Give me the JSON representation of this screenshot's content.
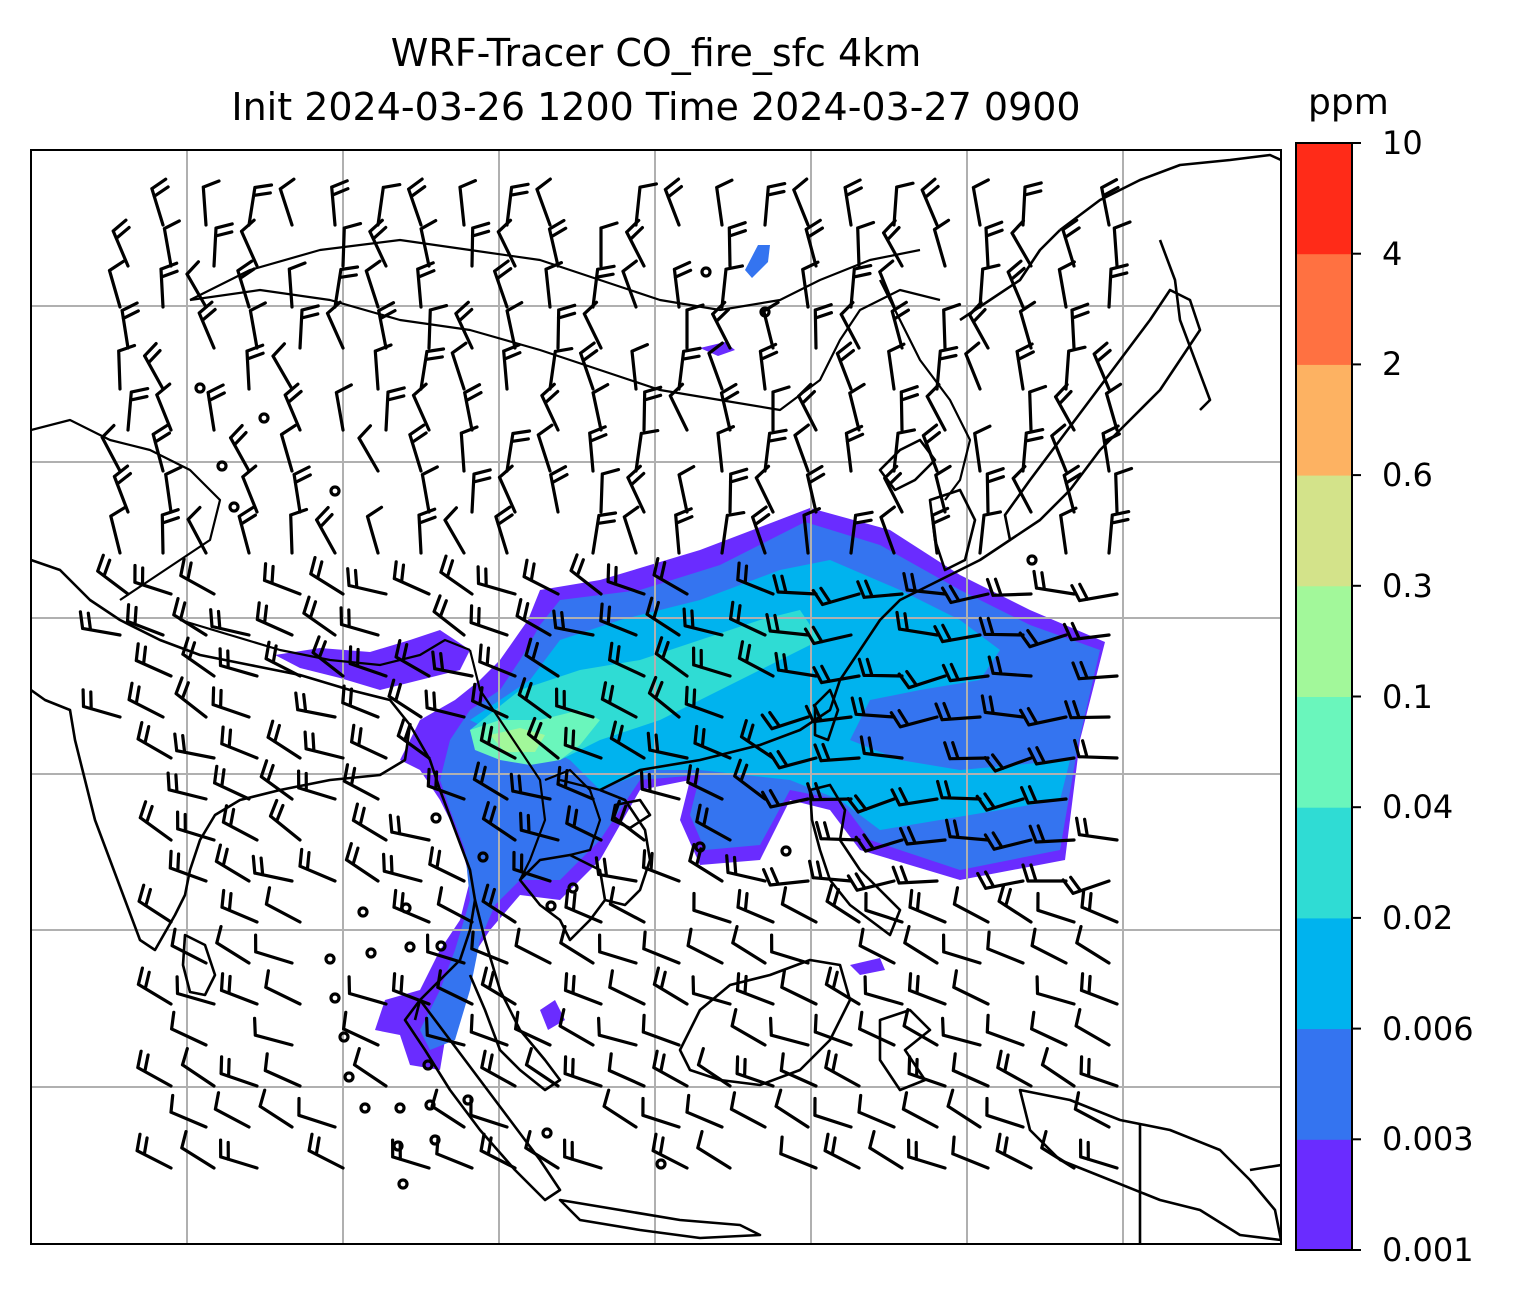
{
  "title": {
    "line1": "WRF-Tracer CO_fire_sfc 4km",
    "line2": "Init 2024-03-26 1200 Time 2024-03-27 0900"
  },
  "colorbar": {
    "unit": "ppm",
    "levels": [
      "0.001",
      "0.003",
      "0.006",
      "0.02",
      "0.04",
      "0.1",
      "0.3",
      "0.6",
      "2",
      "4",
      "10"
    ],
    "colors": [
      "#6a2cff",
      "#3474f0",
      "#00b3ee",
      "#2fdcd4",
      "#6af6bc",
      "#a2f89a",
      "#d3e38a",
      "#fdb262",
      "#ff7141",
      "#ff2b18"
    ]
  },
  "map": {
    "features": [
      "coastlines",
      "country-borders",
      "lat-lon-gridlines",
      "wind-barbs",
      "tracer-shading"
    ],
    "colors": {
      "coastline": "#000000",
      "gridline": "#b0b0b0",
      "barb": "#000000"
    }
  }
}
